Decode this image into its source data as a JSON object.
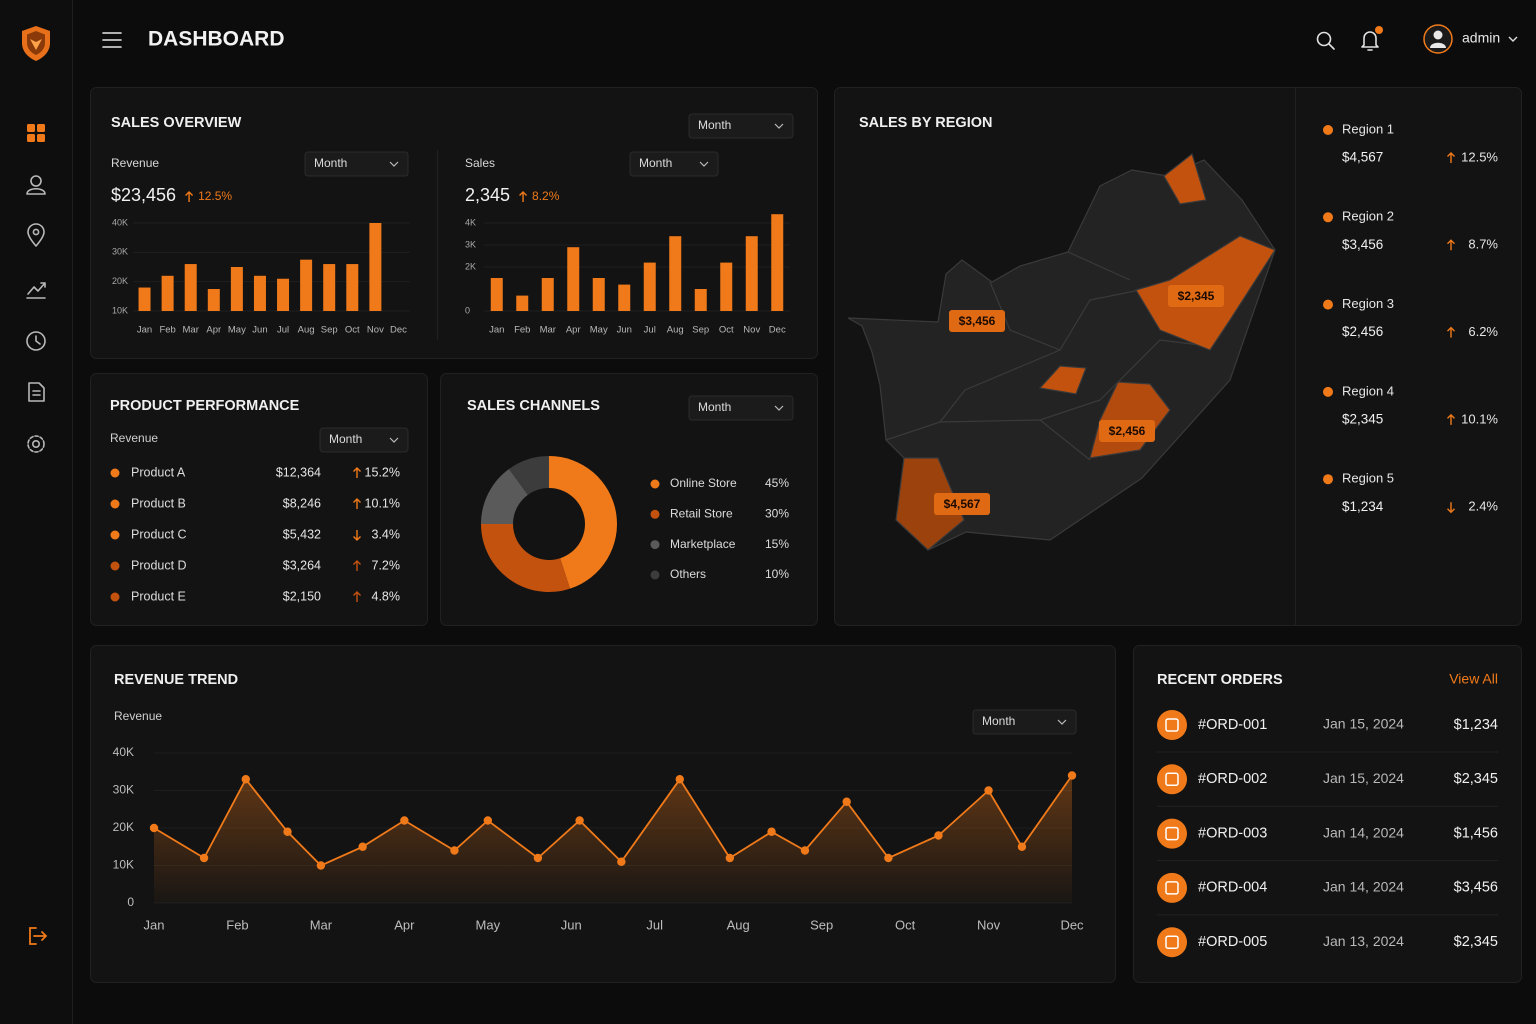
{
  "header": {
    "title": "DASHBOARD",
    "user": "admin"
  },
  "sales_overview": {
    "title": "SALES OVERVIEW",
    "period": "Month",
    "charts": [
      {
        "type": "bar",
        "label": "Revenue",
        "period": "Month",
        "total": "$23,456",
        "change": "12.5%",
        "trend": "up",
        "color": "#f07a1a",
        "categories": [
          "Jan",
          "Feb",
          "Mar",
          "Apr",
          "May",
          "Jun",
          "Jul",
          "Aug",
          "Sep",
          "Oct",
          "Nov",
          "Dec"
        ],
        "values": [
          18000,
          22000,
          26000,
          17500,
          25000,
          22000,
          21000,
          27500,
          26000,
          26000,
          40000,
          null
        ],
        "ylim": [
          10000,
          40000
        ],
        "yticks": [
          {
            "value": 10000,
            "label": "10K"
          },
          {
            "value": 20000,
            "label": "20K"
          },
          {
            "value": 30000,
            "label": "30K"
          },
          {
            "value": 40000,
            "label": "40K"
          }
        ]
      },
      {
        "type": "bar",
        "label": "Sales",
        "period": "Month",
        "total": "2,345",
        "change": "8.2%",
        "trend": "up",
        "color": "#f07a1a",
        "categories": [
          "Jan",
          "Feb",
          "Mar",
          "Apr",
          "May",
          "Jun",
          "Jul",
          "Aug",
          "Sep",
          "Oct",
          "Nov",
          "Dec"
        ],
        "values": [
          1500,
          700,
          1500,
          2900,
          1500,
          1200,
          2200,
          3400,
          1000,
          2200,
          3400,
          4400
        ],
        "ylim": [
          0,
          4500
        ],
        "yticks": [
          0,
          {
            "value": 2000,
            "label": "2K"
          },
          {
            "value": 3000,
            "label": "3K"
          },
          {
            "value": 4000,
            "label": "4K"
          }
        ]
      }
    ]
  },
  "product_performance": {
    "title": "PRODUCT PERFORMANCE",
    "label": "Revenue",
    "period": "Month",
    "rows": [
      {
        "name": "Product A",
        "value": "$12,364",
        "change": "15.2%",
        "trend": "up",
        "color": "#f07a1a"
      },
      {
        "name": "Product B",
        "value": "$8,246",
        "change": "10.1%",
        "trend": "up",
        "color": "#f07a1a"
      },
      {
        "name": "Product C",
        "value": "$5,432",
        "change": "3.4%",
        "trend": "down",
        "color": "#f07a1a"
      },
      {
        "name": "Product D",
        "value": "$3,264",
        "change": "7.2%",
        "trend": "up",
        "color": "#c4520f"
      },
      {
        "name": "Product E",
        "value": "$2,150",
        "change": "4.8%",
        "trend": "up",
        "color": "#c4520f"
      }
    ]
  },
  "sales_channels": {
    "title": "SALES CHANNELS",
    "period": "Month",
    "chart": {
      "type": "donut",
      "names": [
        "Online Store",
        "Retail Store",
        "Marketplace",
        "Others"
      ],
      "values": [
        45,
        30,
        15,
        10
      ],
      "value_labels": [
        "45%",
        "30%",
        "15%",
        "10%"
      ],
      "colors": [
        "#f07a1a",
        "#c4520f",
        "#5a5a5a",
        "#3c3c3c"
      ]
    }
  },
  "sales_by_region": {
    "title": "SALES BY REGION",
    "map_labels": [
      "$3,456",
      "$2,345",
      "$2,456",
      "$4,567"
    ],
    "regions": [
      {
        "name": "Region 1",
        "value": "$4,567",
        "change": "12.5%",
        "trend": "up"
      },
      {
        "name": "Region 2",
        "value": "$3,456",
        "change": "8.7%",
        "trend": "up"
      },
      {
        "name": "Region 3",
        "value": "$2,456",
        "change": "6.2%",
        "trend": "up"
      },
      {
        "name": "Region 4",
        "value": "$2,345",
        "change": "10.1%",
        "trend": "up"
      },
      {
        "name": "Region 5",
        "value": "$1,234",
        "change": "2.4%",
        "trend": "down"
      }
    ]
  },
  "revenue_trend": {
    "title": "REVENUE TREND",
    "label": "Revenue",
    "period": "Month",
    "chart": {
      "type": "line",
      "color": "#f07a1a",
      "x": [
        0,
        0.6,
        1.1,
        1.6,
        2.0,
        2.5,
        3.0,
        3.6,
        4.0,
        4.6,
        5.1,
        5.6,
        6.3,
        6.9,
        7.4,
        7.8,
        8.3,
        8.8,
        9.4,
        10.0,
        10.4,
        11.0
      ],
      "values": [
        20000,
        12000,
        33000,
        19000,
        10000,
        15000,
        22000,
        14000,
        22000,
        12000,
        22000,
        11000,
        33000,
        12000,
        19000,
        14000,
        27000,
        12000,
        18000,
        30000,
        15000,
        34000
      ],
      "xlim": [
        0,
        11
      ],
      "xticks": [
        {
          "value": 0,
          "label": "Jan"
        },
        {
          "value": 1,
          "label": "Feb"
        },
        {
          "value": 2,
          "label": "Mar"
        },
        {
          "value": 3,
          "label": "Apr"
        },
        {
          "value": 4,
          "label": "May"
        },
        {
          "value": 5,
          "label": "Jun"
        },
        {
          "value": 6,
          "label": "Jul"
        },
        {
          "value": 7,
          "label": "Aug"
        },
        {
          "value": 8,
          "label": "Sep"
        },
        {
          "value": 9,
          "label": "Oct"
        },
        {
          "value": 10,
          "label": "Nov"
        },
        {
          "value": 11,
          "label": "Dec"
        }
      ],
      "ylim": [
        0,
        40000
      ],
      "yticks": [
        0,
        {
          "value": 10000,
          "label": "10K"
        },
        {
          "value": 20000,
          "label": "20K"
        },
        {
          "value": 30000,
          "label": "30K"
        },
        {
          "value": 40000,
          "label": "40K"
        }
      ]
    }
  },
  "recent_orders": {
    "title": "RECENT ORDERS",
    "action": "View All",
    "orders": [
      {
        "id": "#ORD-001",
        "date": "Jan 15, 2024",
        "amount": "$1,234"
      },
      {
        "id": "#ORD-002",
        "date": "Jan 15, 2024",
        "amount": "$2,345"
      },
      {
        "id": "#ORD-003",
        "date": "Jan 14, 2024",
        "amount": "$1,456"
      },
      {
        "id": "#ORD-004",
        "date": "Jan 14, 2024",
        "amount": "$3,456"
      },
      {
        "id": "#ORD-005",
        "date": "Jan 13, 2024",
        "amount": "$2,345"
      }
    ]
  }
}
